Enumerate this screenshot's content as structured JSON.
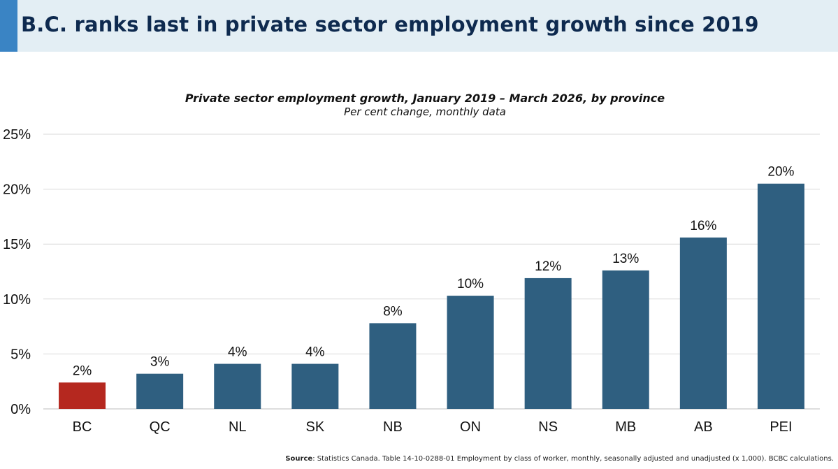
{
  "header": {
    "title": "B.C. ranks last in private sector employment growth since 2019"
  },
  "chart_data": {
    "type": "bar",
    "title": "Private sector employment growth, January 2019 – March 2026, by province",
    "subtitle": "Per cent change, monthly data",
    "categories": [
      "BC",
      "QC",
      "NL",
      "SK",
      "NB",
      "ON",
      "NS",
      "MB",
      "AB",
      "PEI"
    ],
    "values": [
      2.4,
      3.2,
      4.1,
      4.1,
      7.8,
      10.3,
      11.9,
      12.6,
      15.6,
      20.5
    ],
    "data_labels": [
      "2%",
      "3%",
      "4%",
      "4%",
      "8%",
      "10%",
      "12%",
      "13%",
      "16%",
      "20%"
    ],
    "highlight_category": "BC",
    "colors": {
      "default": "#2f5f80",
      "highlight": "#b5281f"
    },
    "ylim": [
      0,
      25
    ],
    "yticks": [
      0,
      5,
      10,
      15,
      20,
      25
    ],
    "ytick_labels": [
      "0%",
      "5%",
      "10%",
      "15%",
      "20%",
      "25%"
    ],
    "grid": true,
    "xlabel": "",
    "ylabel": ""
  },
  "footer": {
    "source_label": "Source",
    "source_text": ": Statistics Canada. Table 14-10-0288-01  Employment by class of worker, monthly, seasonally adjusted and unadjusted (x 1,000). BCBC calculations."
  }
}
